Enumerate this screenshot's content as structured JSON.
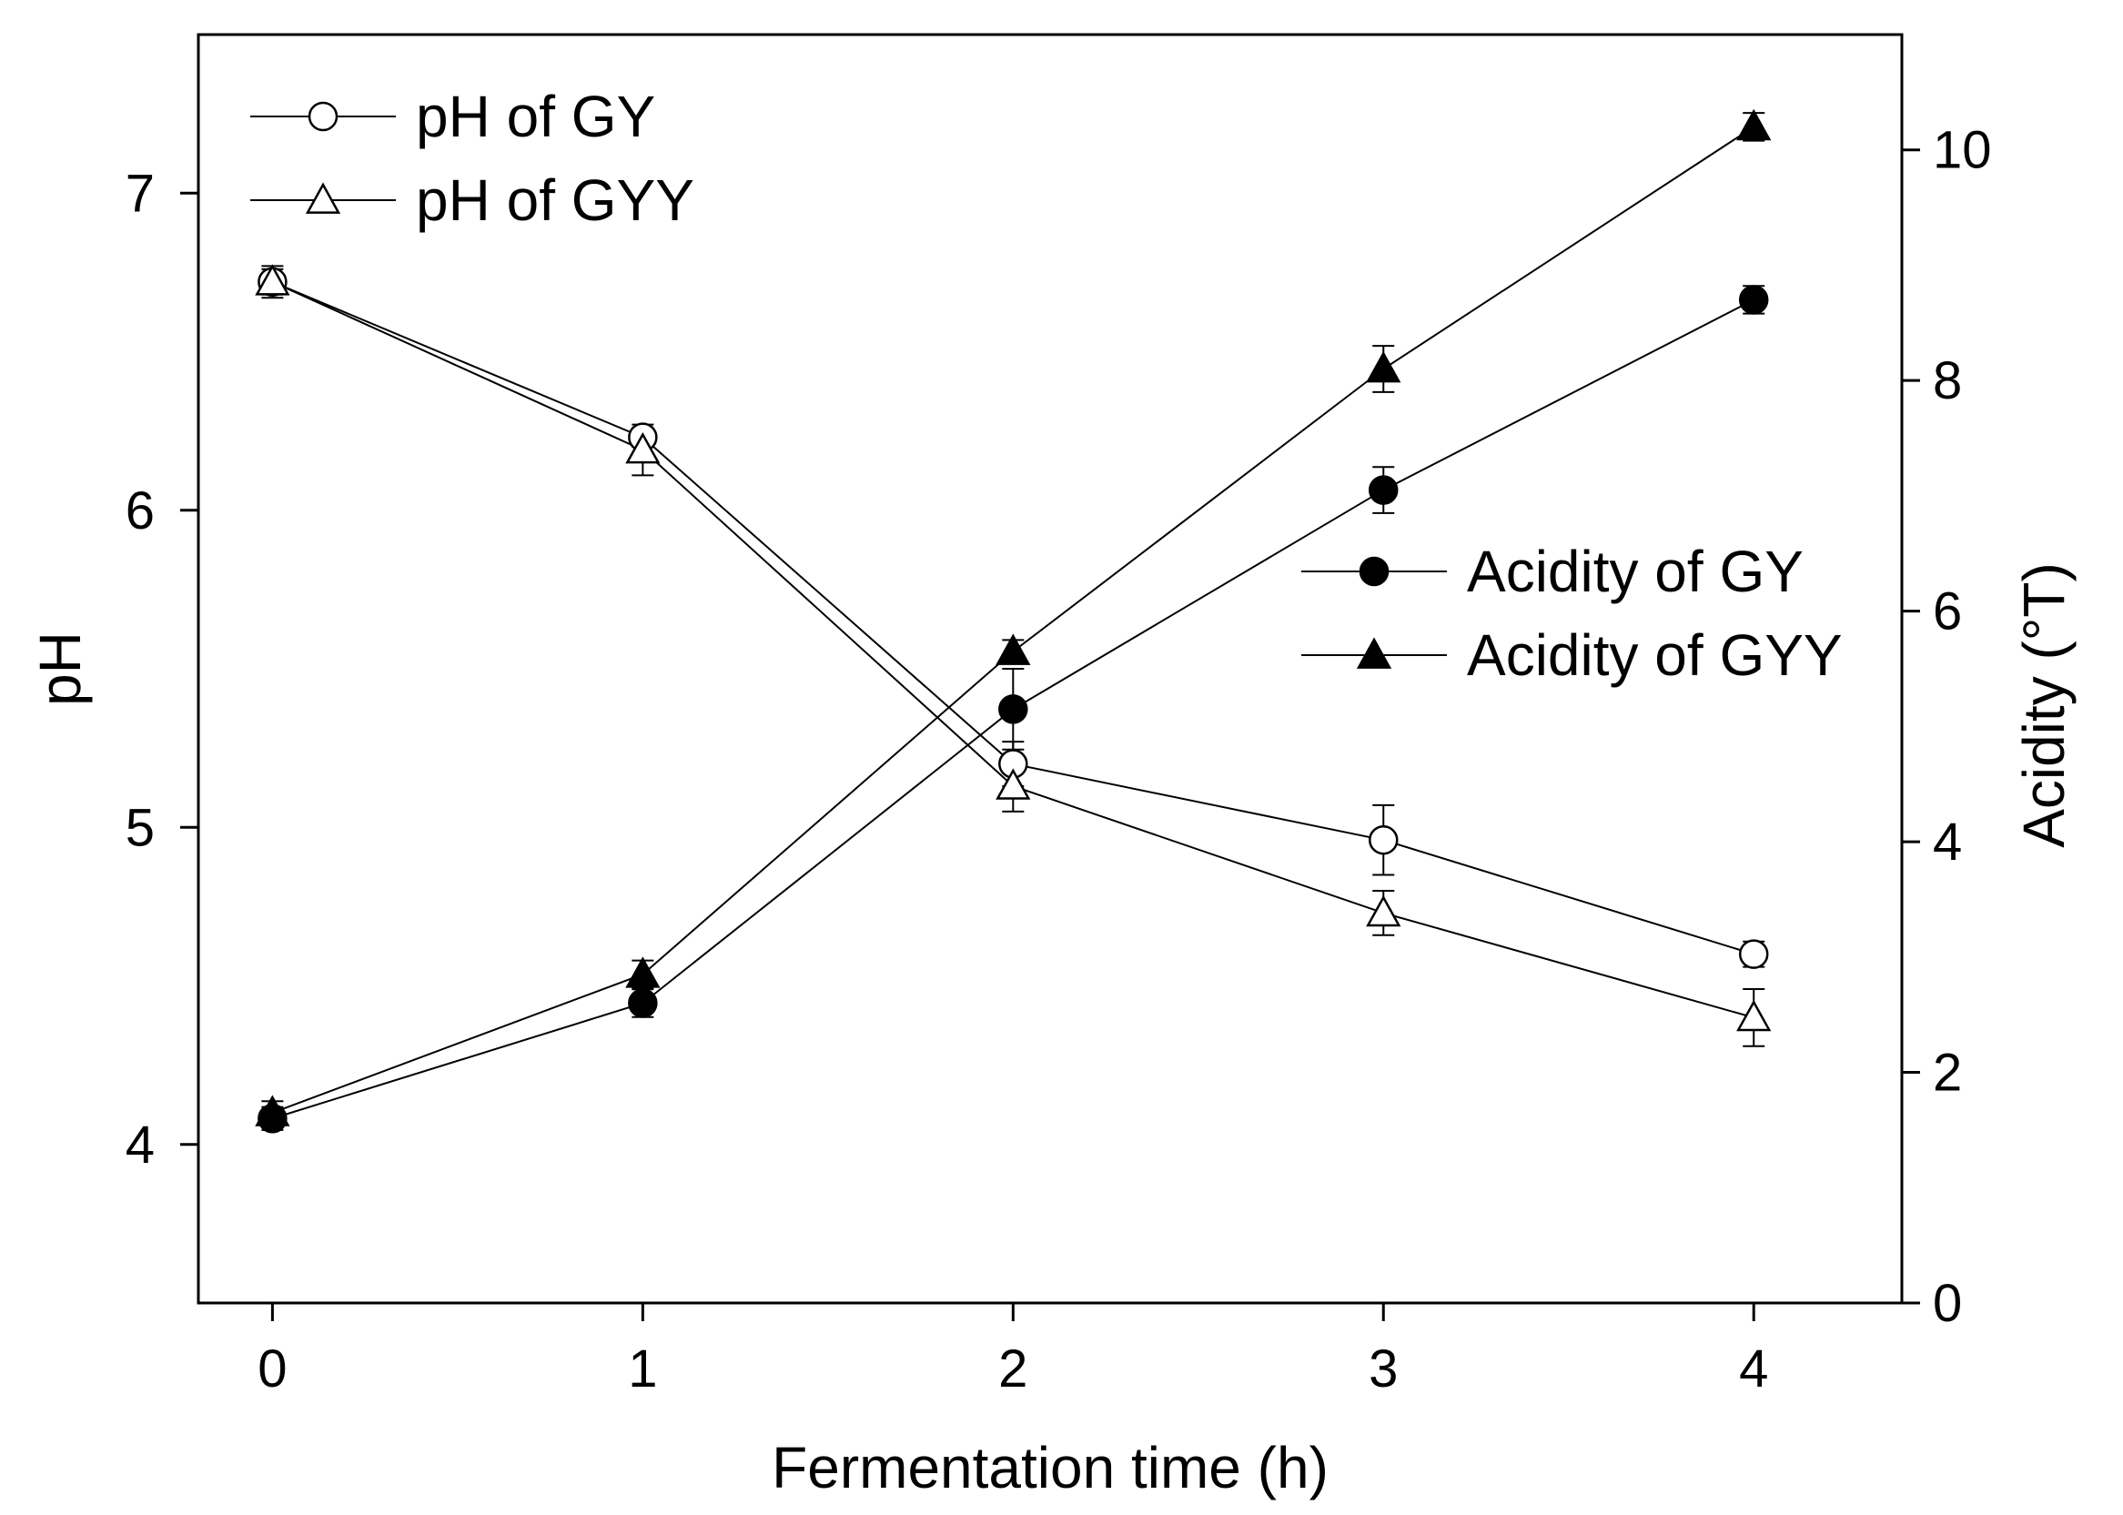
{
  "chart_data": {
    "type": "line",
    "x": [
      0,
      1,
      2,
      3,
      4
    ],
    "xlabel": "Fermentation time (h)",
    "xlim": [
      -0.2,
      4.4
    ],
    "xticks": [
      0,
      1,
      2,
      3,
      4
    ],
    "ylabel_left": "pH",
    "ylim_left": [
      3.5,
      7.5
    ],
    "yticks_left": [
      4,
      5,
      6,
      7
    ],
    "ylabel_right": "Acidity (°T)",
    "ylim_right": [
      0,
      11
    ],
    "yticks_right": [
      0,
      2,
      4,
      6,
      8,
      10
    ],
    "grid": false,
    "legends": [
      {
        "placement": "top-left",
        "entries": [
          "pH of GY",
          "pH of GYY"
        ]
      },
      {
        "placement": "middle-right",
        "entries": [
          "Acidity of GY",
          "Acidity of GYY"
        ]
      }
    ],
    "series": [
      {
        "name": "pH of GY",
        "axis": "left",
        "marker": "circle-open",
        "values": [
          6.72,
          6.23,
          5.2,
          4.96,
          4.6
        ],
        "errors": [
          0.04,
          0.03,
          0.07,
          0.11,
          0.04
        ]
      },
      {
        "name": "pH of GYY",
        "axis": "left",
        "marker": "triangle-open",
        "values": [
          6.72,
          6.19,
          5.13,
          4.73,
          4.4
        ],
        "errors": [
          0.05,
          0.08,
          0.08,
          0.07,
          0.09
        ]
      },
      {
        "name": "Acidity of GY",
        "axis": "right",
        "marker": "circle-filled",
        "values": [
          1.6,
          2.6,
          5.15,
          7.05,
          8.7
        ],
        "errors": [
          0.1,
          0.12,
          0.35,
          0.2,
          0.12
        ]
      },
      {
        "name": "Acidity of GYY",
        "axis": "right",
        "marker": "triangle-filled",
        "values": [
          1.65,
          2.85,
          5.65,
          8.1,
          10.2
        ],
        "errors": [
          0.1,
          0.12,
          0.1,
          0.2,
          0.12
        ]
      }
    ]
  }
}
